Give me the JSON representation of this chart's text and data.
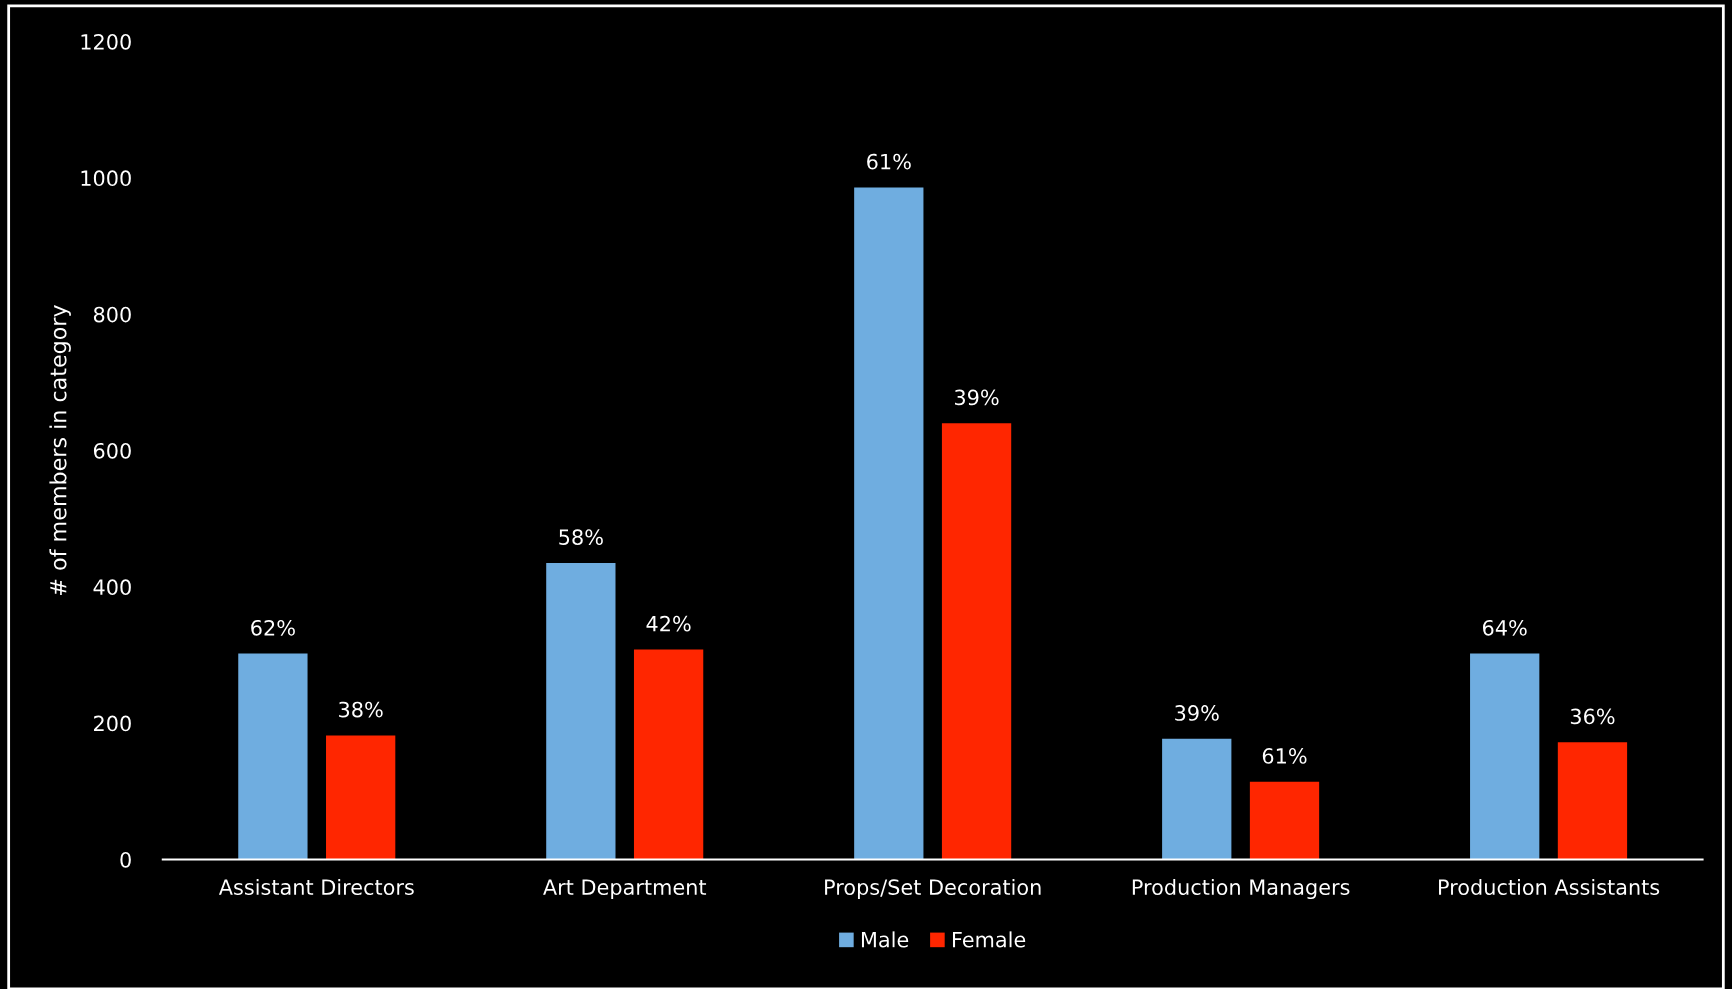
{
  "chart_data": {
    "type": "bar",
    "ylabel": "# of members in category",
    "categories": [
      "Assistant Directors",
      "Art Department",
      "Props/Set Decoration",
      "Production Managers",
      "Production Assistants"
    ],
    "series": [
      {
        "name": "Male",
        "color": "#6fade0",
        "values": [
          302,
          435,
          986,
          177,
          302
        ]
      },
      {
        "name": "Female",
        "color": "#ff2600",
        "values": [
          182,
          308,
          640,
          114,
          172
        ]
      }
    ],
    "annotations": [
      "62%",
      "58%",
      "61%",
      "39%",
      "64%",
      "38%",
      "42%",
      "39%",
      "61%",
      "36%"
    ],
    "ylim": [
      0,
      1200
    ],
    "yticks": [
      0,
      200,
      400,
      600,
      800,
      1000,
      1200
    ],
    "grid": false,
    "legend": "bottom"
  }
}
